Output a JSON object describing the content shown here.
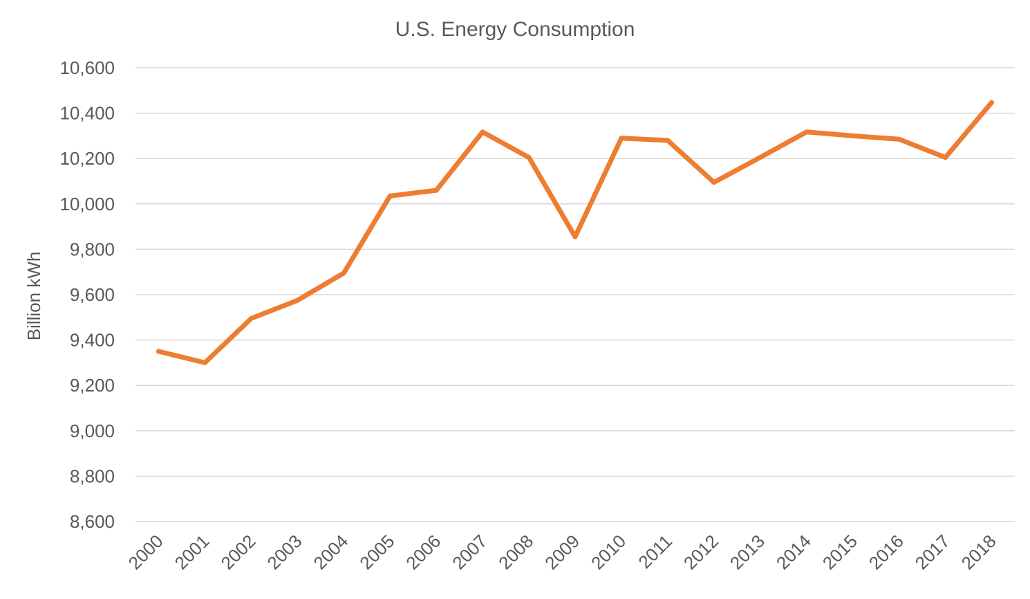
{
  "chart_data": {
    "type": "line",
    "title": "U.S. Energy Consumption",
    "xlabel": "",
    "ylabel": "Billion kWh",
    "ylim": [
      8600,
      10600
    ],
    "ytick_values": [
      8600,
      8800,
      9000,
      9200,
      9400,
      9600,
      9800,
      10000,
      10200,
      10400,
      10600
    ],
    "ytick_labels": [
      "8,600",
      "8,800",
      "9,000",
      "9,200",
      "9,400",
      "9,600",
      "9,800",
      "10,000",
      "10,200",
      "10,400",
      "10,600"
    ],
    "categories": [
      "2000",
      "2001",
      "2002",
      "2003",
      "2004",
      "2005",
      "2006",
      "2007",
      "2008",
      "2009",
      "2010",
      "2011",
      "2012",
      "2013",
      "2014",
      "2015",
      "2016",
      "2017",
      "2018"
    ],
    "series": [
      {
        "name": "U.S. Energy Consumption",
        "color": "#ed7d31",
        "values": [
          9350,
          9300,
          9495,
          9575,
          9695,
          10035,
          10060,
          10317,
          10205,
          9855,
          10290,
          10280,
          10095,
          10205,
          10317,
          10300,
          10285,
          10205,
          10447
        ]
      }
    ],
    "grid": true,
    "legend": "none"
  }
}
